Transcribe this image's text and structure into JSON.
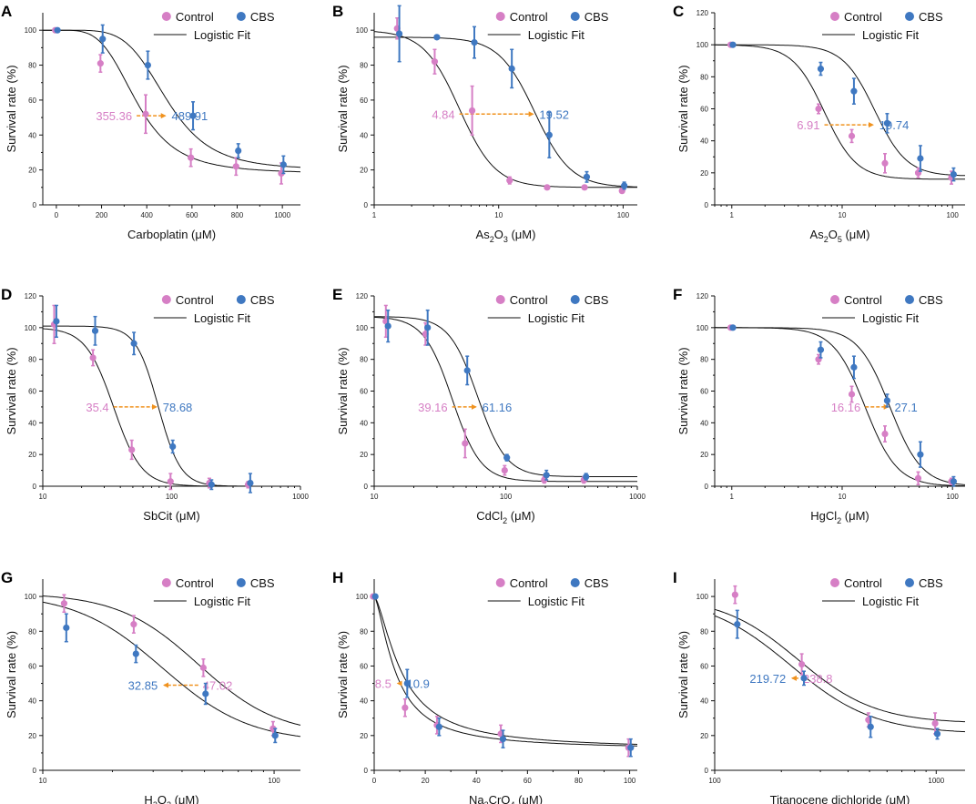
{
  "figure": {
    "colors": {
      "control": "#d67fc5",
      "cbs": "#3f78c1",
      "arrow": "#f0921e",
      "fit": "#111111",
      "axis": "#111111"
    },
    "legend_labels": {
      "control": "Control",
      "cbs": "CBS",
      "fit": "Logistic Fit"
    },
    "ylabel": "Survival rate (%)"
  },
  "chart_data": [
    {
      "panel": "A",
      "type": "scatter",
      "xscale": "linear",
      "xlabel": "Carboplatin (μM)",
      "ylabel": "Survival rate (%)",
      "xlim": [
        -60,
        1080
      ],
      "ylim": [
        0,
        110
      ],
      "xticks": [
        0,
        200,
        400,
        600,
        800,
        1000
      ],
      "xtick_labels": [
        "0",
        "200",
        "400",
        "600",
        "800",
        "1000"
      ],
      "yticks": [
        0,
        20,
        40,
        60,
        80,
        100
      ],
      "ytick_labels": [
        "0",
        "20",
        "40",
        "60",
        "80",
        "100"
      ],
      "series": [
        {
          "name": "Control",
          "x": [
            0,
            200,
            400,
            600,
            800,
            1000
          ],
          "y": [
            100,
            81,
            52,
            27,
            22,
            18
          ],
          "err": [
            0,
            5,
            11,
            5,
            5,
            6
          ]
        },
        {
          "name": "CBS",
          "x": [
            0,
            200,
            400,
            600,
            800,
            1000
          ],
          "y": [
            100,
            95,
            80,
            51,
            31,
            23
          ],
          "err": [
            0,
            8,
            8,
            8,
            4,
            5
          ]
        }
      ],
      "fits": [
        {
          "name": "Control",
          "top": 100,
          "bottom": 18,
          "ic50": 355.36,
          "slope": 4
        },
        {
          "name": "CBS",
          "top": 100,
          "bottom": 20,
          "ic50": 489.91,
          "slope": 5
        }
      ],
      "annotation": {
        "from": 355.36,
        "to": 489.91,
        "y": 51,
        "left_label": "355.36",
        "right_label": "489.91",
        "left_color": "control",
        "right_color": "cbs"
      }
    },
    {
      "panel": "B",
      "type": "scatter",
      "xscale": "log",
      "xlabel": "As2O3 (μM)",
      "xlabel_parts": [
        "As",
        "2",
        "O",
        "3",
        " (μM)"
      ],
      "ylabel": "Survival rate (%)",
      "xlim": [
        1,
        130
      ],
      "ylim": [
        0,
        110
      ],
      "xticks": [
        1,
        10,
        100
      ],
      "xtick_labels": [
        "1",
        "10",
        "100"
      ],
      "yticks": [
        0,
        20,
        40,
        60,
        80,
        100
      ],
      "ytick_labels": [
        "0",
        "20",
        "40",
        "60",
        "80",
        "100"
      ],
      "series": [
        {
          "name": "Control",
          "x": [
            1.56,
            3.125,
            6.25,
            12.5,
            25,
            50,
            100
          ],
          "y": [
            101,
            82,
            54,
            14,
            10,
            10,
            8
          ],
          "err": [
            6,
            7,
            14,
            2,
            1,
            1,
            1
          ]
        },
        {
          "name": "CBS",
          "x": [
            1.56,
            3.125,
            6.25,
            12.5,
            25,
            50,
            100
          ],
          "y": [
            98,
            96,
            93,
            78,
            40,
            16,
            11
          ],
          "err": [
            16,
            1,
            9,
            11,
            13,
            3,
            2
          ]
        }
      ],
      "fits": [
        {
          "name": "Control",
          "top": 100,
          "bottom": 10,
          "ic50": 4.84,
          "slope": 3
        },
        {
          "name": "CBS",
          "top": 96,
          "bottom": 10,
          "ic50": 19.52,
          "slope": 3
        }
      ],
      "annotation": {
        "from": 4.84,
        "to": 19.52,
        "y": 52,
        "left_label": "4.84",
        "right_label": "19.52",
        "left_color": "control",
        "right_color": "cbs"
      }
    },
    {
      "panel": "C",
      "type": "scatter",
      "xscale": "log",
      "xlabel": "As2O5 (μM)",
      "xlabel_parts": [
        "As",
        "2",
        "O",
        "5",
        " (μM)"
      ],
      "ylabel": "Survival rate (%)",
      "xlim": [
        0.7,
        130
      ],
      "ylim": [
        0,
        120
      ],
      "xticks": [
        1,
        10,
        100
      ],
      "xtick_labels": [
        "1",
        "10",
        "100"
      ],
      "yticks": [
        0,
        20,
        40,
        60,
        80,
        100,
        120
      ],
      "ytick_labels": [
        "0",
        "20",
        "40",
        "60",
        "80",
        "100",
        "120"
      ],
      "series": [
        {
          "name": "Control",
          "x": [
            1,
            6.25,
            12.5,
            25,
            50,
            100
          ],
          "y": [
            100,
            60,
            43,
            26,
            20,
            17
          ],
          "err": [
            0,
            3,
            4,
            6,
            3,
            4
          ]
        },
        {
          "name": "CBS",
          "x": [
            1,
            6.25,
            12.5,
            25,
            50,
            100
          ],
          "y": [
            100,
            85,
            71,
            51,
            29,
            19
          ],
          "err": [
            0,
            4,
            8,
            6,
            8,
            4
          ]
        }
      ],
      "fits": [
        {
          "name": "Control",
          "top": 100,
          "bottom": 16,
          "ic50": 6.91,
          "slope": 3
        },
        {
          "name": "CBS",
          "top": 100,
          "bottom": 18,
          "ic50": 19.74,
          "slope": 3
        }
      ],
      "annotation": {
        "from": 6.91,
        "to": 19.74,
        "y": 50,
        "left_label": "6.91",
        "right_label": "19.74",
        "left_color": "control",
        "right_color": "cbs"
      }
    },
    {
      "panel": "D",
      "type": "scatter",
      "xscale": "log",
      "xlabel": "SbCit (μM)",
      "xlabel_parts": [
        "SbCit (μM)"
      ],
      "ylabel": "Survival rate (%)",
      "xlim": [
        10,
        1000
      ],
      "ylim": [
        0,
        120
      ],
      "xticks": [
        10,
        100,
        1000
      ],
      "xtick_labels": [
        "10",
        "100",
        "1000"
      ],
      "yticks": [
        0,
        20,
        40,
        60,
        80,
        100,
        120
      ],
      "ytick_labels": [
        "0",
        "20",
        "40",
        "60",
        "80",
        "100",
        "120"
      ],
      "series": [
        {
          "name": "Control",
          "x": [
            12.5,
            25,
            50,
            100,
            200,
            400
          ],
          "y": [
            102,
            81,
            23,
            3,
            2,
            1
          ],
          "err": [
            12,
            5,
            6,
            5,
            3,
            2
          ]
        },
        {
          "name": "CBS",
          "x": [
            12.5,
            25,
            50,
            100,
            200,
            400
          ],
          "y": [
            104,
            98,
            90,
            25,
            1,
            2
          ],
          "err": [
            10,
            9,
            7,
            4,
            3,
            6
          ]
        }
      ],
      "fits": [
        {
          "name": "Control",
          "top": 100,
          "bottom": 0,
          "ic50": 35.4,
          "slope": 4
        },
        {
          "name": "CBS",
          "top": 101,
          "bottom": 0,
          "ic50": 78.68,
          "slope": 5
        }
      ],
      "annotation": {
        "from": 35.4,
        "to": 78.68,
        "y": 50,
        "left_label": "35.4",
        "right_label": "78.68",
        "left_color": "control",
        "right_color": "cbs"
      }
    },
    {
      "panel": "E",
      "type": "scatter",
      "xscale": "log",
      "xlabel": "CdCl2 (μM)",
      "xlabel_parts": [
        "CdCl",
        "2",
        " (μM)"
      ],
      "ylabel": "Survival rate (%)",
      "xlim": [
        10,
        1000
      ],
      "ylim": [
        0,
        120
      ],
      "xticks": [
        10,
        100,
        1000
      ],
      "xtick_labels": [
        "10",
        "100",
        "1000"
      ],
      "yticks": [
        0,
        20,
        40,
        60,
        80,
        100,
        120
      ],
      "ytick_labels": [
        "0",
        "20",
        "40",
        "60",
        "80",
        "100",
        "120"
      ],
      "series": [
        {
          "name": "Control",
          "x": [
            12.5,
            25,
            50,
            100,
            200,
            400
          ],
          "y": [
            104,
            96,
            27,
            10,
            4,
            4
          ],
          "err": [
            10,
            7,
            9,
            3,
            2,
            2
          ]
        },
        {
          "name": "CBS",
          "x": [
            12.5,
            25,
            50,
            100,
            200,
            400
          ],
          "y": [
            101,
            100,
            73,
            18,
            7,
            6
          ],
          "err": [
            10,
            11,
            9,
            2,
            3,
            2
          ]
        }
      ],
      "fits": [
        {
          "name": "Control",
          "top": 107,
          "bottom": 3,
          "ic50": 39.16,
          "slope": 4
        },
        {
          "name": "CBS",
          "top": 107,
          "bottom": 6,
          "ic50": 61.16,
          "slope": 4
        }
      ],
      "annotation": {
        "from": 39.16,
        "to": 61.16,
        "y": 50,
        "left_label": "39.16",
        "right_label": "61.16",
        "left_color": "control",
        "right_color": "cbs"
      }
    },
    {
      "panel": "F",
      "type": "scatter",
      "xscale": "log",
      "xlabel": "HgCl2 (μM)",
      "xlabel_parts": [
        "HgCl",
        "2",
        " (μM)"
      ],
      "ylabel": "Survival rate (%)",
      "xlim": [
        0.7,
        130
      ],
      "ylim": [
        0,
        120
      ],
      "xticks": [
        1,
        10,
        100
      ],
      "xtick_labels": [
        "1",
        "10",
        "100"
      ],
      "yticks": [
        0,
        20,
        40,
        60,
        80,
        100,
        120
      ],
      "ytick_labels": [
        "0",
        "20",
        "40",
        "60",
        "80",
        "100",
        "120"
      ],
      "series": [
        {
          "name": "Control",
          "x": [
            1,
            6.25,
            12.5,
            25,
            50,
            100
          ],
          "y": [
            100,
            80,
            58,
            33,
            5,
            3
          ],
          "err": [
            0,
            3,
            5,
            5,
            4,
            2
          ]
        },
        {
          "name": "CBS",
          "x": [
            1,
            6.25,
            12.5,
            25,
            50,
            100
          ],
          "y": [
            100,
            86,
            75,
            54,
            20,
            3
          ],
          "err": [
            0,
            5,
            7,
            4,
            8,
            3
          ]
        }
      ],
      "fits": [
        {
          "name": "Control",
          "top": 100,
          "bottom": 0,
          "ic50": 16.16,
          "slope": 3
        },
        {
          "name": "CBS",
          "top": 100,
          "bottom": 0,
          "ic50": 27.1,
          "slope": 3
        }
      ],
      "annotation": {
        "from": 16.16,
        "to": 27.1,
        "y": 50,
        "left_label": "16.16",
        "right_label": "27.1",
        "left_color": "control",
        "right_color": "cbs"
      }
    },
    {
      "panel": "G",
      "type": "scatter",
      "xscale": "log",
      "xlabel": "H2O2 (μM)",
      "xlabel_parts": [
        "H",
        "2",
        "O",
        "2",
        " (μM)"
      ],
      "ylabel": "Survival rate (%)",
      "xlim": [
        10,
        130
      ],
      "ylim": [
        0,
        110
      ],
      "xticks": [
        10,
        100
      ],
      "xtick_labels": [
        "10",
        "100"
      ],
      "yticks": [
        0,
        20,
        40,
        60,
        80,
        100
      ],
      "ytick_labels": [
        "0",
        "20",
        "40",
        "60",
        "80",
        "100"
      ],
      "series": [
        {
          "name": "Control",
          "x": [
            12.5,
            25,
            50,
            100
          ],
          "y": [
            96,
            84,
            59,
            24
          ],
          "err": [
            5,
            5,
            5,
            4
          ]
        },
        {
          "name": "CBS",
          "x": [
            12.5,
            25,
            50,
            100
          ],
          "y": [
            82,
            67,
            44,
            20
          ],
          "err": [
            8,
            5,
            6,
            4
          ]
        }
      ],
      "fits": [
        {
          "name": "Control",
          "top": 102,
          "bottom": 20,
          "ic50": 47.02,
          "slope": 2.5
        },
        {
          "name": "CBS",
          "top": 102,
          "bottom": 16,
          "ic50": 32.85,
          "slope": 2.3
        }
      ],
      "annotation": {
        "from": 47.02,
        "to": 32.85,
        "y": 49,
        "left_label": "32.85",
        "right_label": "47.02",
        "left_color": "cbs",
        "right_color": "control"
      }
    },
    {
      "panel": "H",
      "type": "scatter",
      "xscale": "linear",
      "xlabel": "Na2CrO4 (μM)",
      "xlabel_parts": [
        "Na",
        "2",
        "CrO",
        "4",
        " (μM)"
      ],
      "ylabel": "Survival rate (%)",
      "xlim": [
        0,
        103
      ],
      "ylim": [
        0,
        110
      ],
      "xticks": [
        0,
        20,
        40,
        60,
        80,
        100
      ],
      "xtick_labels": [
        "0",
        "20",
        "40",
        "60",
        "80",
        "100"
      ],
      "yticks": [
        0,
        20,
        40,
        60,
        80,
        100
      ],
      "ytick_labels": [
        "0",
        "20",
        "40",
        "60",
        "80",
        "100"
      ],
      "series": [
        {
          "name": "Control",
          "x": [
            0,
            12.5,
            25,
            50,
            100
          ],
          "y": [
            100,
            36,
            26,
            21,
            13
          ],
          "err": [
            0,
            5,
            5,
            5,
            5
          ]
        },
        {
          "name": "CBS",
          "x": [
            0,
            12.5,
            25,
            50,
            100
          ],
          "y": [
            100,
            50,
            25,
            18,
            13
          ],
          "err": [
            0,
            8,
            5,
            5,
            5
          ]
        }
      ],
      "fits": [
        {
          "name": "Control",
          "top": 100,
          "bottom": 12,
          "ic50": 8.5,
          "slope": 1.5
        },
        {
          "name": "CBS",
          "top": 100,
          "bottom": 12,
          "ic50": 10.9,
          "slope": 1.5
        }
      ],
      "annotation": {
        "from": 10.9,
        "to": 8.5,
        "y": 50,
        "left_label": "8.5",
        "right_label": "10.9",
        "left_color": "control",
        "right_color": "cbs"
      }
    },
    {
      "panel": "I",
      "type": "scatter",
      "xscale": "log",
      "xlabel": "Titanocene dichloride (μM)",
      "xlabel_parts": [
        "Titanocene dichloride (μM)"
      ],
      "ylabel": "Survival rate (%)",
      "xlim": [
        100,
        1350
      ],
      "ylim": [
        0,
        110
      ],
      "xticks": [
        100,
        1000
      ],
      "xtick_labels": [
        "100",
        "1000"
      ],
      "yticks": [
        0,
        20,
        40,
        60,
        80,
        100
      ],
      "ytick_labels": [
        "0",
        "20",
        "40",
        "60",
        "80",
        "100"
      ],
      "series": [
        {
          "name": "Control",
          "x": [
            125,
            250,
            500,
            1000
          ],
          "y": [
            101,
            61,
            29,
            27
          ],
          "err": [
            5,
            6,
            4,
            6
          ]
        },
        {
          "name": "CBS",
          "x": [
            125,
            250,
            500,
            1000
          ],
          "y": [
            84,
            53,
            25,
            21
          ],
          "err": [
            8,
            4,
            6,
            3
          ]
        }
      ],
      "fits": [
        {
          "name": "Control",
          "top": 100,
          "bottom": 27,
          "ic50": 238.8,
          "slope": 2.5
        },
        {
          "name": "CBS",
          "top": 100,
          "bottom": 21,
          "ic50": 219.72,
          "slope": 2.3
        }
      ],
      "annotation": {
        "from": 238.8,
        "to": 219.72,
        "y": 53,
        "left_label": "219.72",
        "right_label": "238.8",
        "left_color": "cbs",
        "right_color": "control"
      }
    }
  ]
}
